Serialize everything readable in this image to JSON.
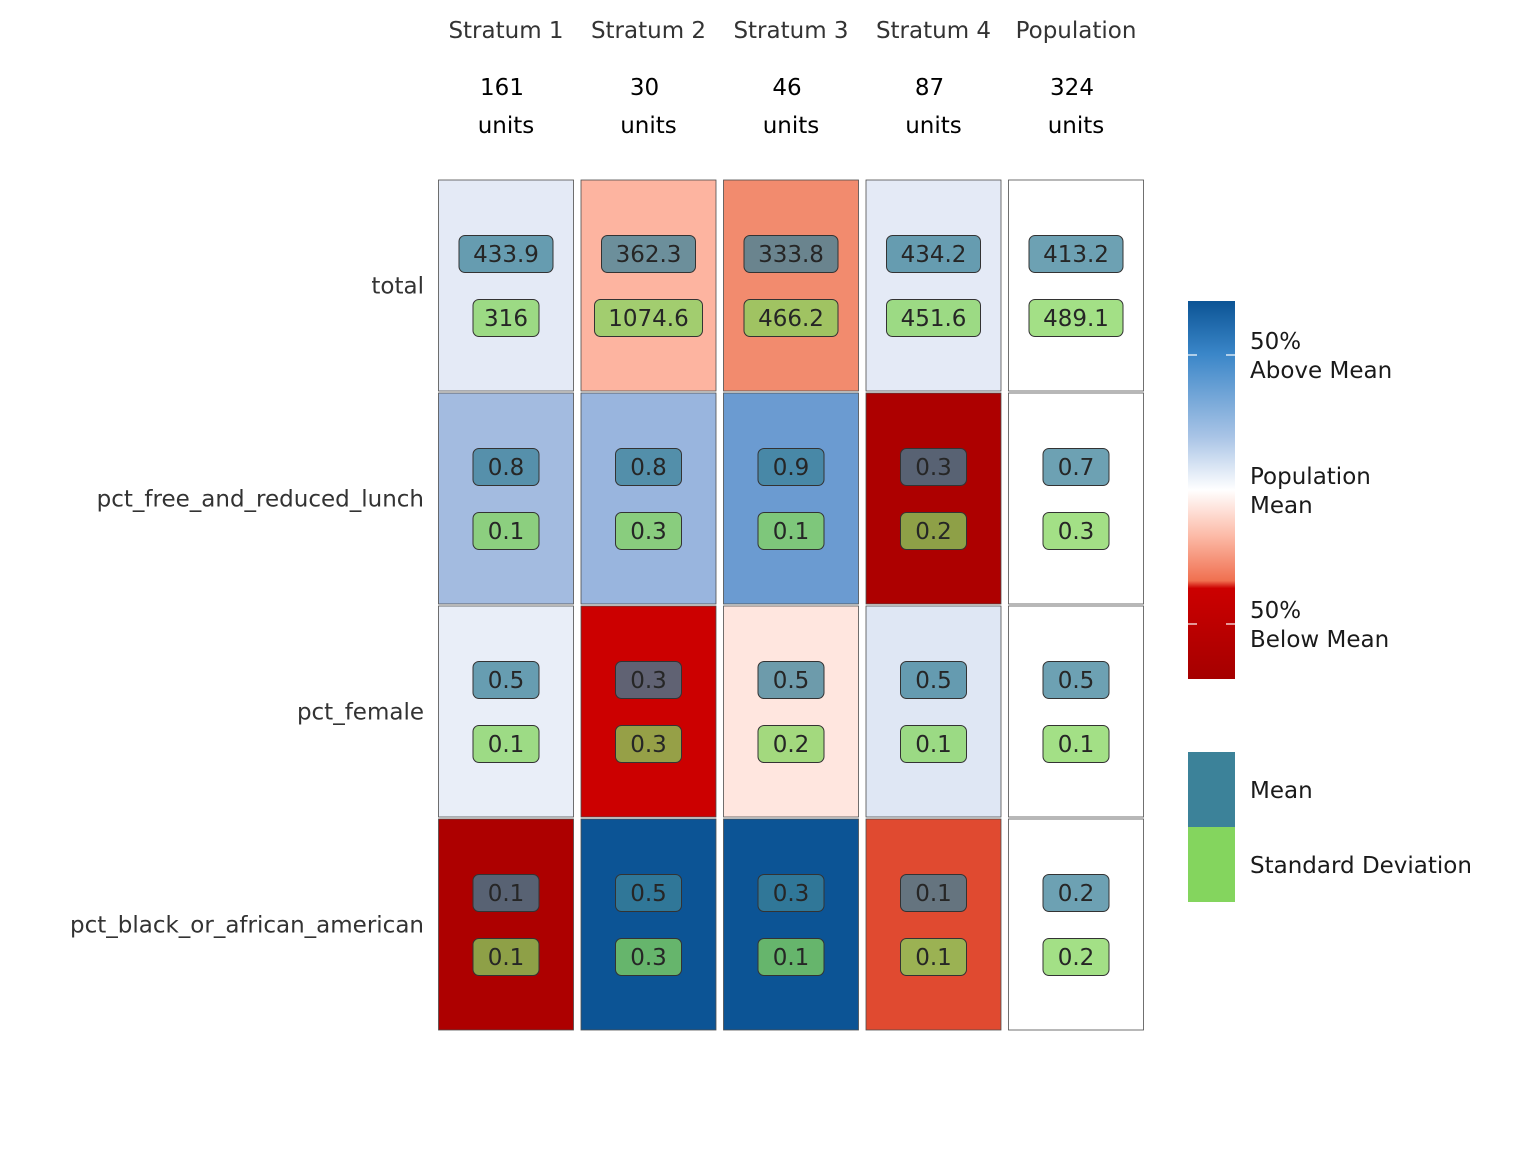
{
  "chart_data": {
    "type": "heatmap",
    "title": "",
    "xlabel": "",
    "ylabel": "",
    "columns": [
      {
        "name": "Stratum 1",
        "count": "161",
        "unit_label": "units"
      },
      {
        "name": "Stratum 2",
        "count": "30",
        "unit_label": "units"
      },
      {
        "name": "Stratum 3",
        "count": "46",
        "unit_label": "units"
      },
      {
        "name": "Stratum 4",
        "count": "87",
        "unit_label": "units"
      },
      {
        "name": "Population",
        "count": "324",
        "unit_label": "units"
      }
    ],
    "rows": [
      "total",
      "pct_free_and_reduced_lunch",
      "pct_female",
      "pct_black_or_african_american"
    ],
    "means": [
      [
        "433.9",
        "362.3",
        "333.8",
        "434.2",
        "413.2"
      ],
      [
        "0.8",
        "0.8",
        "0.9",
        "0.3",
        "0.7"
      ],
      [
        "0.5",
        "0.3",
        "0.5",
        "0.5",
        "0.5"
      ],
      [
        "0.1",
        "0.5",
        "0.3",
        "0.1",
        "0.2"
      ]
    ],
    "sds": [
      [
        "316",
        "1074.6",
        "466.2",
        "451.6",
        "489.1"
      ],
      [
        "0.1",
        "0.3",
        "0.1",
        "0.2",
        "0.3"
      ],
      [
        "0.1",
        "0.3",
        "0.2",
        "0.1",
        "0.1"
      ],
      [
        "0.1",
        "0.3",
        "0.1",
        "0.1",
        "0.2"
      ]
    ],
    "cell_colors": [
      [
        "#e4eaf6",
        "#fdb4a0",
        "#f28b6e",
        "#e4eaf6",
        "#ffffff"
      ],
      [
        "#a3bbe0",
        "#99b5de",
        "#6b9bd1",
        "#ad0000",
        "#ffffff"
      ],
      [
        "#e9eef8",
        "#cc0000",
        "#ffe6df",
        "#dfe7f4",
        "#ffffff"
      ],
      [
        "#ad0000",
        "#0c5495",
        "#0c5495",
        "#e04a30",
        "#ffffff"
      ]
    ],
    "legend": {
      "placement": "right",
      "gradient_labels": [
        {
          "line1": "50%",
          "line2": "Above Mean"
        },
        {
          "line1": "Population",
          "line2": "Mean"
        },
        {
          "line1": "50%",
          "line2": "Below Mean"
        }
      ],
      "gradient_colors": [
        "#0c5495",
        "#3a86c8",
        "#a9c4e6",
        "#ffffff",
        "#fcbba8",
        "#f07050",
        "#cc0000",
        "#a50000"
      ],
      "keys": [
        {
          "label": "Mean",
          "color": "#3c8299"
        },
        {
          "label": "Standard Deviation",
          "color": "#84d55e"
        }
      ]
    },
    "mean_label_color": "#3c8299",
    "sd_label_color": "#84d55e",
    "grid": false
  }
}
